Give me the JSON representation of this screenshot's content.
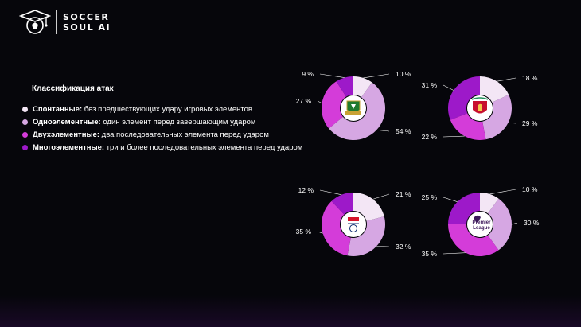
{
  "brand": {
    "line1": "SOCCER",
    "line2": "SOUL AI"
  },
  "legend": {
    "title": "Классификация атак",
    "items": [
      {
        "bold": "Спонтанные:",
        "text": " без предшествующих удару игровых элементов",
        "color": "#f3e6f5"
      },
      {
        "bold": "Одноэлементные:",
        "text": " один элемент перед завершающим ударом",
        "color": "#d6a7e3"
      },
      {
        "bold": "Двухэлементные:",
        "text": " два последовательных элемента перед ударом",
        "color": "#d43cd9"
      },
      {
        "bold": "Многоэлементные:",
        "text": " три и более последовательных элемента перед ударом",
        "color": "#9d19c9"
      }
    ]
  },
  "chart_data": [
    {
      "type": "pie",
      "logo": "club-crest-green-icon",
      "categories": [
        "Спонтанные",
        "Одноэлементные",
        "Двухэлементные",
        "Многоэлементные"
      ],
      "values": [
        10,
        54,
        27,
        9
      ],
      "labels": [
        "10 %",
        "54 %",
        "27 %",
        "9 %"
      ]
    },
    {
      "type": "pie",
      "logo": "liverpool-crest-icon",
      "categories": [
        "Спонтанные",
        "Одноэлементные",
        "Двухэлементные",
        "Многоэлементные"
      ],
      "values": [
        18,
        29,
        22,
        31
      ],
      "labels": [
        "18 %",
        "29 %",
        "22 %",
        "31 %"
      ]
    },
    {
      "type": "pie",
      "logo": "sky-bet-efl-icon",
      "categories": [
        "Спонтанные",
        "Одноэлементные",
        "Двухэлементные",
        "Многоэлементные"
      ],
      "values": [
        21,
        32,
        35,
        12
      ],
      "labels": [
        "21 %",
        "32 %",
        "35 %",
        "12 %"
      ]
    },
    {
      "type": "pie",
      "logo": "premier-league-icon",
      "categories": [
        "Спонтанные",
        "Одноэлементные",
        "Двухэлементные",
        "Многоэлементные"
      ],
      "values": [
        10,
        30,
        35,
        25
      ],
      "labels": [
        "10 %",
        "30 %",
        "35 %",
        "25 %"
      ],
      "logo_text": [
        "Premier",
        "League"
      ]
    }
  ]
}
